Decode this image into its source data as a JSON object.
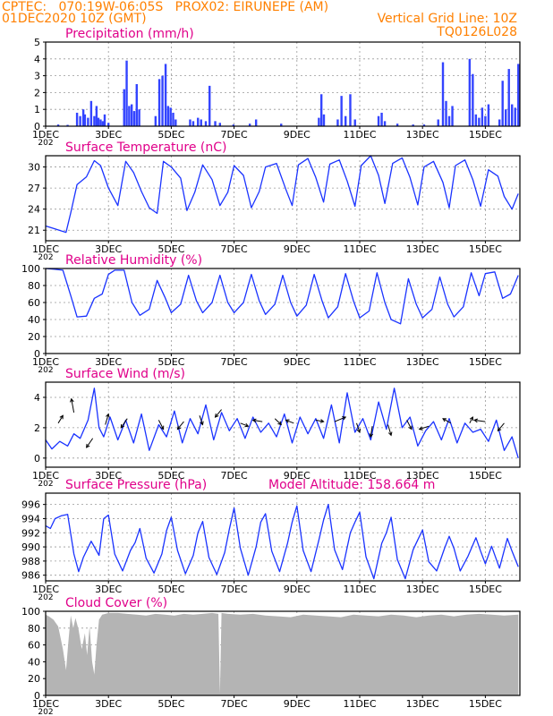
{
  "header": {
    "line1_left": "CPTEC:   070:19W-06:05S   PROX02: EIRUNEPE (AM)",
    "line2_left": "01DEC2020 10Z (GMT)",
    "line2_right": "Vertical Grid Line: 10Z",
    "line3_right": "TQ0126L028",
    "model_altitude": "Model Altitude: 158.664  m",
    "color": "#ff8000",
    "title_color": "#e0008a",
    "series_color": "#1a33ff",
    "bar_color": "#3344ff",
    "cloud_color": "#b4b4b4"
  },
  "x_axis": {
    "start_day": 1,
    "end_day": 16.1,
    "tick_labels": [
      {
        "day": 1,
        "label": "1DEC"
      },
      {
        "day": 3,
        "label": "3DEC"
      },
      {
        "day": 5,
        "label": "5DEC"
      },
      {
        "day": 7,
        "label": "7DEC"
      },
      {
        "day": 9,
        "label": "9DEC"
      },
      {
        "day": 11,
        "label": "11DEC"
      },
      {
        "day": 13,
        "label": "13DEC"
      },
      {
        "day": 15,
        "label": "15DEC"
      }
    ],
    "year_fragment": "202"
  },
  "chart_data": [
    {
      "id": "precip",
      "type": "bar",
      "title": "Precipitation (mm/h)",
      "ylim": [
        0,
        5
      ],
      "yticks": [
        0,
        1,
        2,
        3,
        4,
        5
      ],
      "grid": true,
      "x": [
        1.4,
        1.7,
        2.0,
        2.1,
        2.2,
        2.25,
        2.35,
        2.45,
        2.55,
        2.62,
        2.68,
        2.75,
        2.82,
        2.88,
        3.0,
        3.5,
        3.58,
        3.66,
        3.74,
        3.82,
        3.9,
        3.98,
        4.5,
        4.62,
        4.72,
        4.82,
        4.9,
        4.98,
        5.06,
        5.14,
        5.6,
        5.7,
        5.85,
        5.95,
        6.1,
        6.22,
        6.4,
        6.55,
        6.98,
        7.5,
        7.7,
        8.5,
        9.7,
        9.78,
        9.86,
        10.3,
        10.42,
        10.55,
        10.7,
        10.85,
        11.6,
        11.7,
        11.8,
        12.2,
        12.7,
        13.05,
        13.5,
        13.65,
        13.75,
        13.85,
        13.95,
        14.5,
        14.6,
        14.7,
        14.8,
        14.9,
        15.0,
        15.1,
        15.45,
        15.55,
        15.65,
        15.75,
        15.85,
        15.95,
        16.05
      ],
      "values": [
        0.1,
        0.08,
        0.8,
        0.6,
        1.0,
        0.7,
        0.5,
        1.5,
        0.6,
        1.2,
        0.5,
        0.4,
        0.3,
        0.7,
        0.2,
        2.2,
        3.9,
        1.2,
        1.3,
        0.9,
        2.5,
        1.0,
        0.6,
        2.8,
        3.0,
        3.7,
        1.2,
        1.1,
        0.8,
        0.4,
        0.4,
        0.3,
        0.5,
        0.4,
        0.3,
        2.4,
        0.3,
        0.2,
        0.1,
        0.15,
        0.4,
        0.15,
        0.5,
        1.9,
        0.7,
        0.4,
        1.8,
        0.6,
        1.9,
        0.4,
        0.6,
        0.8,
        0.3,
        0.15,
        0.1,
        0.1,
        0.4,
        3.8,
        1.5,
        0.6,
        1.2,
        4.0,
        3.1,
        0.7,
        0.5,
        1.1,
        0.6,
        1.3,
        0.4,
        2.7,
        1.0,
        3.4,
        1.3,
        1.1,
        3.7
      ]
    },
    {
      "id": "temp",
      "type": "line",
      "title": "Surface Temperature (nC)",
      "ylim": [
        19.5,
        31.6
      ],
      "yticks": [
        21,
        24,
        27,
        30
      ],
      "grid": true,
      "x": [
        1.0,
        1.3,
        1.5,
        1.65,
        1.8,
        2.0,
        2.3,
        2.55,
        2.75,
        3.0,
        3.3,
        3.55,
        3.8,
        4.05,
        4.3,
        4.55,
        4.75,
        5.0,
        5.3,
        5.5,
        5.75,
        6.0,
        6.3,
        6.55,
        6.8,
        7.0,
        7.3,
        7.55,
        7.8,
        8.0,
        8.35,
        8.65,
        8.85,
        9.05,
        9.35,
        9.6,
        9.85,
        10.05,
        10.35,
        10.6,
        10.85,
        11.05,
        11.35,
        11.6,
        11.8,
        12.05,
        12.35,
        12.6,
        12.85,
        13.05,
        13.35,
        13.65,
        13.85,
        14.05,
        14.35,
        14.6,
        14.85,
        15.1,
        15.4,
        15.6,
        15.85,
        16.05
      ],
      "values": [
        21.6,
        21.2,
        20.9,
        20.7,
        23.5,
        27.5,
        28.6,
        30.9,
        30.2,
        27.0,
        24.5,
        30.8,
        29.2,
        26.5,
        24.2,
        23.4,
        30.8,
        30.0,
        28.4,
        23.8,
        26.4,
        30.3,
        28.2,
        24.5,
        26.4,
        30.2,
        28.8,
        24.2,
        26.5,
        30.0,
        30.5,
        26.8,
        24.5,
        30.3,
        31.2,
        28.5,
        25.0,
        30.4,
        31.0,
        28.0,
        24.4,
        30.2,
        31.6,
        28.8,
        24.8,
        30.5,
        31.3,
        28.5,
        24.6,
        30.0,
        30.8,
        27.8,
        24.2,
        30.2,
        31.0,
        28.2,
        24.4,
        29.6,
        28.7,
        25.8,
        24.0,
        26.2
      ]
    },
    {
      "id": "rh",
      "type": "line",
      "title": "Relative Humidity (%)",
      "ylim": [
        0,
        100
      ],
      "yticks": [
        0,
        20,
        40,
        60,
        80,
        100
      ],
      "grid": true,
      "x": [
        1.0,
        1.3,
        1.55,
        1.8,
        2.0,
        2.3,
        2.55,
        2.8,
        3.0,
        3.2,
        3.5,
        3.75,
        4.0,
        4.3,
        4.55,
        4.8,
        5.0,
        5.3,
        5.55,
        5.8,
        6.0,
        6.3,
        6.55,
        6.8,
        7.0,
        7.3,
        7.55,
        7.8,
        8.0,
        8.3,
        8.55,
        8.8,
        9.0,
        9.3,
        9.55,
        9.8,
        10.0,
        10.3,
        10.55,
        10.8,
        11.0,
        11.3,
        11.55,
        11.8,
        12.0,
        12.3,
        12.55,
        12.8,
        13.0,
        13.3,
        13.55,
        13.8,
        14.0,
        14.3,
        14.55,
        14.8,
        15.0,
        15.3,
        15.55,
        15.8,
        16.05
      ],
      "values": [
        100,
        99,
        98,
        68,
        43,
        44,
        65,
        70,
        93,
        98,
        98,
        60,
        45,
        52,
        86,
        66,
        48,
        58,
        92,
        62,
        48,
        60,
        92,
        60,
        48,
        60,
        93,
        62,
        46,
        58,
        92,
        60,
        44,
        57,
        93,
        62,
        42,
        55,
        94,
        62,
        42,
        50,
        95,
        60,
        40,
        35,
        88,
        58,
        42,
        52,
        90,
        58,
        43,
        55,
        95,
        68,
        94,
        96,
        65,
        70,
        92
      ]
    },
    {
      "id": "wind",
      "type": "line",
      "title": "Surface Wind (m/s)",
      "ylim": [
        -0.6,
        5.0
      ],
      "yticks": [
        0,
        2,
        4
      ],
      "grid": true,
      "x": [
        1.0,
        1.2,
        1.45,
        1.7,
        1.9,
        2.1,
        2.35,
        2.55,
        2.7,
        2.85,
        3.05,
        3.3,
        3.55,
        3.8,
        4.05,
        4.3,
        4.6,
        4.85,
        5.1,
        5.35,
        5.6,
        5.85,
        6.1,
        6.35,
        6.6,
        6.85,
        7.1,
        7.35,
        7.6,
        7.85,
        8.1,
        8.35,
        8.6,
        8.85,
        9.1,
        9.35,
        9.6,
        9.85,
        10.1,
        10.35,
        10.6,
        10.85,
        11.1,
        11.35,
        11.6,
        11.85,
        12.1,
        12.35,
        12.6,
        12.85,
        13.1,
        13.35,
        13.6,
        13.85,
        14.1,
        14.35,
        14.6,
        14.85,
        15.1,
        15.35,
        15.6,
        15.85,
        16.05
      ],
      "values": [
        1.2,
        0.6,
        1.1,
        0.8,
        1.6,
        1.3,
        2.5,
        4.6,
        2.0,
        1.4,
        2.7,
        1.2,
        2.5,
        1.0,
        2.9,
        0.5,
        2.2,
        1.4,
        3.1,
        1.0,
        2.6,
        1.6,
        3.5,
        1.2,
        3.0,
        1.8,
        2.6,
        1.3,
        2.7,
        1.7,
        2.3,
        1.4,
        2.9,
        1.0,
        2.7,
        1.6,
        2.6,
        1.3,
        3.5,
        1.0,
        4.3,
        1.7,
        2.6,
        1.2,
        3.7,
        1.9,
        4.6,
        2.0,
        2.7,
        0.8,
        1.8,
        2.4,
        1.2,
        2.6,
        1.0,
        2.3,
        1.7,
        1.9,
        1.1,
        2.5,
        0.5,
        1.4,
        0.0
      ],
      "arrows": [
        {
          "x": 1.4,
          "y": 2.3,
          "dx": 0.15,
          "dy": 0.5
        },
        {
          "x": 1.9,
          "y": 3.0,
          "dx": -0.08,
          "dy": 0.9
        },
        {
          "x": 2.5,
          "y": 1.3,
          "dx": -0.2,
          "dy": -0.6
        },
        {
          "x": 2.9,
          "y": 2.2,
          "dx": 0.1,
          "dy": 0.7
        },
        {
          "x": 3.6,
          "y": 2.6,
          "dx": -0.2,
          "dy": -0.6
        },
        {
          "x": 4.6,
          "y": 2.5,
          "dx": 0.15,
          "dy": -0.6
        },
        {
          "x": 5.4,
          "y": 2.4,
          "dx": -0.2,
          "dy": -0.5
        },
        {
          "x": 5.9,
          "y": 2.8,
          "dx": 0.1,
          "dy": -0.6
        },
        {
          "x": 6.6,
          "y": 3.2,
          "dx": -0.2,
          "dy": -0.5
        },
        {
          "x": 7.2,
          "y": 2.3,
          "dx": 0.25,
          "dy": -0.2
        },
        {
          "x": 7.9,
          "y": 2.4,
          "dx": -0.3,
          "dy": 0.1
        },
        {
          "x": 8.3,
          "y": 2.6,
          "dx": 0.2,
          "dy": -0.4
        },
        {
          "x": 8.9,
          "y": 2.3,
          "dx": -0.25,
          "dy": 0.2
        },
        {
          "x": 9.6,
          "y": 2.5,
          "dx": 0.25,
          "dy": -0.1
        },
        {
          "x": 10.2,
          "y": 2.4,
          "dx": 0.35,
          "dy": 0.3
        },
        {
          "x": 10.9,
          "y": 2.3,
          "dx": 0.1,
          "dy": -0.6
        },
        {
          "x": 11.4,
          "y": 2.1,
          "dx": -0.05,
          "dy": -0.7
        },
        {
          "x": 11.9,
          "y": 2.2,
          "dx": 0.1,
          "dy": -0.7
        },
        {
          "x": 12.5,
          "y": 2.5,
          "dx": 0.15,
          "dy": -0.6
        },
        {
          "x": 13.2,
          "y": 2.1,
          "dx": -0.3,
          "dy": -0.2
        },
        {
          "x": 13.9,
          "y": 2.3,
          "dx": -0.25,
          "dy": 0.3
        },
        {
          "x": 14.5,
          "y": 2.3,
          "dx": 0.1,
          "dy": 0.4
        },
        {
          "x": 15.0,
          "y": 2.4,
          "dx": -0.35,
          "dy": 0.1
        },
        {
          "x": 15.6,
          "y": 2.3,
          "dx": -0.2,
          "dy": -0.5
        }
      ]
    },
    {
      "id": "pressure",
      "type": "line",
      "title": "Surface Pressure (hPa)",
      "ylim": [
        985.2,
        997.6
      ],
      "yticks": [
        986,
        988,
        990,
        992,
        994,
        996
      ],
      "grid": true,
      "x": [
        1.0,
        1.15,
        1.3,
        1.5,
        1.7,
        1.9,
        2.05,
        2.2,
        2.45,
        2.7,
        2.85,
        3.0,
        3.2,
        3.45,
        3.7,
        3.85,
        4.0,
        4.2,
        4.45,
        4.7,
        4.85,
        5.0,
        5.2,
        5.45,
        5.7,
        5.85,
        6.0,
        6.2,
        6.45,
        6.7,
        6.85,
        7.0,
        7.2,
        7.45,
        7.7,
        7.85,
        8.0,
        8.2,
        8.45,
        8.7,
        8.85,
        9.0,
        9.2,
        9.45,
        9.7,
        9.85,
        10.0,
        10.2,
        10.45,
        10.7,
        10.85,
        11.0,
        11.2,
        11.45,
        11.7,
        11.85,
        12.0,
        12.2,
        12.45,
        12.7,
        12.85,
        13.0,
        13.2,
        13.45,
        13.7,
        13.85,
        14.0,
        14.2,
        14.45,
        14.7,
        14.85,
        15.0,
        15.2,
        15.45,
        15.7,
        15.85,
        16.05
      ],
      "values": [
        993.0,
        992.6,
        994.0,
        994.4,
        994.6,
        989.0,
        986.5,
        988.5,
        990.8,
        988.8,
        994.0,
        994.5,
        989.0,
        986.6,
        989.5,
        990.6,
        992.6,
        988.4,
        986.3,
        989.0,
        992.3,
        994.2,
        989.5,
        986.2,
        988.8,
        992.0,
        993.6,
        988.5,
        986.1,
        989.2,
        992.5,
        995.5,
        989.8,
        986.0,
        990.0,
        993.5,
        994.7,
        989.4,
        986.5,
        990.5,
        993.5,
        995.8,
        989.5,
        986.5,
        991.0,
        993.8,
        996.0,
        989.6,
        986.8,
        992.0,
        993.5,
        994.9,
        988.6,
        985.5,
        990.5,
        992.0,
        994.2,
        988.2,
        985.5,
        989.6,
        991.0,
        992.4,
        987.9,
        986.6,
        989.8,
        991.5,
        989.8,
        986.6,
        988.7,
        991.3,
        989.4,
        987.6,
        990.1,
        987.0,
        991.2,
        989.4,
        987.2
      ]
    },
    {
      "id": "cloud",
      "type": "area",
      "title": "Cloud Cover (%)",
      "ylim": [
        0,
        100
      ],
      "yticks": [
        0,
        20,
        40,
        60,
        80,
        100
      ],
      "grid": true,
      "x": [
        1.0,
        1.1,
        1.25,
        1.4,
        1.55,
        1.65,
        1.72,
        1.8,
        1.88,
        1.95,
        2.05,
        2.15,
        2.25,
        2.32,
        2.4,
        2.48,
        2.55,
        2.62,
        2.7,
        2.8,
        2.9,
        3.0,
        3.3,
        3.6,
        3.9,
        4.2,
        4.5,
        4.8,
        5.1,
        5.4,
        5.7,
        6.0,
        6.3,
        6.5,
        6.55,
        6.6,
        6.8,
        7.2,
        7.6,
        8.0,
        8.4,
        8.8,
        9.2,
        9.6,
        10.0,
        10.4,
        10.8,
        11.2,
        11.6,
        12.0,
        12.4,
        12.8,
        13.2,
        13.6,
        14.0,
        14.4,
        14.8,
        15.2,
        15.6,
        16.05
      ],
      "values": [
        96,
        94,
        90,
        82,
        55,
        30,
        62,
        95,
        80,
        92,
        78,
        55,
        74,
        48,
        82,
        40,
        25,
        60,
        90,
        96,
        97,
        98,
        98,
        97,
        96,
        95,
        97,
        96,
        95,
        97,
        96,
        97,
        98,
        97,
        2,
        98,
        97,
        96,
        97,
        95,
        94,
        93,
        96,
        95,
        94,
        93,
        96,
        95,
        94,
        96,
        95,
        93,
        95,
        96,
        94,
        96,
        97,
        96,
        95,
        96
      ]
    }
  ]
}
